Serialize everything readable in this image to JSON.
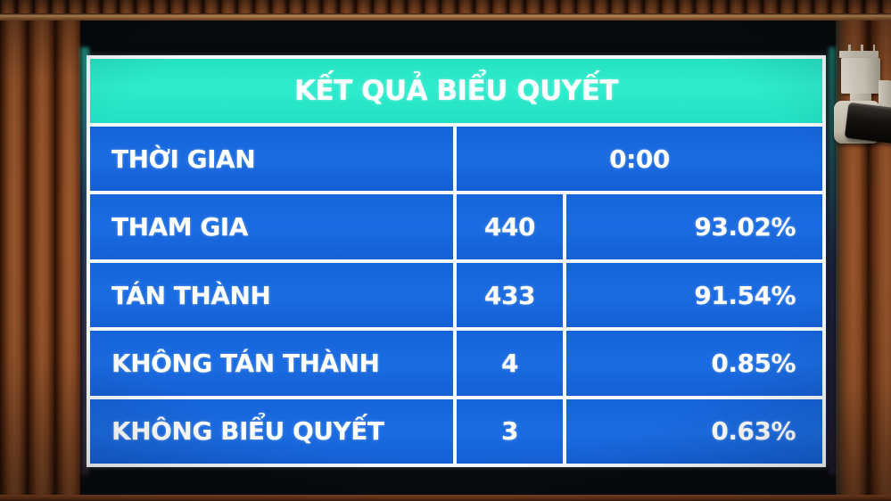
{
  "board": {
    "title": "KẾT QUẢ BIỂU QUYẾT",
    "rows": [
      {
        "label": "THỜI GIAN",
        "value": "0:00"
      },
      {
        "label": "THAM GIA",
        "count": "440",
        "percent": "93.02%"
      },
      {
        "label": "TÁN THÀNH",
        "count": "433",
        "percent": "91.54%"
      },
      {
        "label": "KHÔNG TÁN THÀNH",
        "count": "4",
        "percent": "0.85%"
      },
      {
        "label": "KHÔNG BIỂU QUYẾT",
        "count": "3",
        "percent": "0.63%"
      }
    ],
    "colors": {
      "header_bg": "#2ae9c9",
      "cell_bg": "#1565dc",
      "grid": "#ffffff",
      "text": "#ffffff",
      "screen_bg": "#07090c",
      "wood": "#8a4a24"
    }
  },
  "chart_data": {
    "type": "table",
    "title": "KẾT QUẢ BIỂU QUYẾT",
    "columns": [
      "label",
      "count",
      "percent"
    ],
    "rows": [
      [
        "THỜI GIAN",
        "0:00",
        ""
      ],
      [
        "THAM GIA",
        440,
        "93.02%"
      ],
      [
        "TÁN THÀNH",
        433,
        "91.54%"
      ],
      [
        "KHÔNG TÁN THÀNH",
        4,
        "0.85%"
      ],
      [
        "KHÔNG BIỂU QUYẾT",
        3,
        "0.63%"
      ]
    ]
  }
}
